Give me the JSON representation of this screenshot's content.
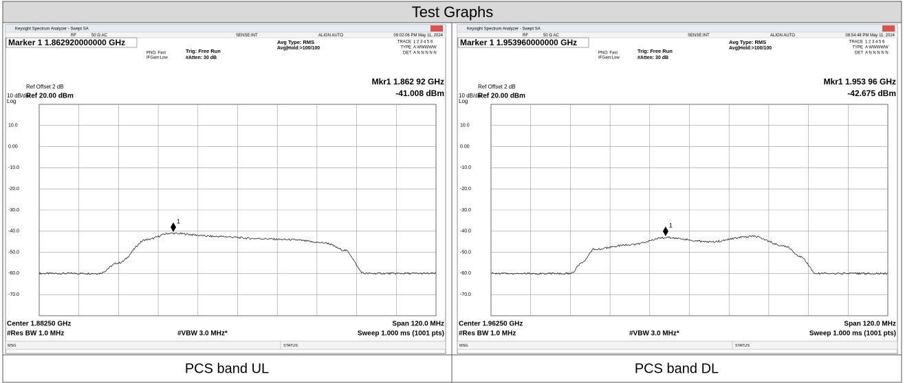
{
  "title": "Test Graphs",
  "panels": [
    {
      "caption": "PCS band UL",
      "window_title": "Keysight Spectrum Analyzer - Swept SA",
      "status_bar": [
        "RF",
        "50 Ω  AC",
        "SENSE:INT",
        "ALIGN AUTO",
        "09:02:06 PM May 11, 2024"
      ],
      "marker": "Marker 1 1.862920000000 GHz",
      "settings": [
        "PNO: Fast",
        "IFGain:Low",
        "Trig: Free Run",
        "#Atten: 30 dB",
        "Avg Type: RMS",
        "Avg|Hold:>100/100"
      ],
      "trace_info": [
        "TRACE",
        "1 2 3 4 5 6",
        "TYPE",
        "A WWWWW",
        "DET",
        "A N N N N N"
      ],
      "ref_offset": "Ref Offset 2 dB",
      "scale": "10 dB/div",
      "ref_level": "Ref 20.00 dBm",
      "scale_type": "Log",
      "marker_freq": "Mkr1 1.862 92 GHz",
      "marker_level": "-41.008 dBm",
      "y_labels": [
        "10.0",
        "0.00",
        "-10.0",
        "-20.0",
        "-30.0",
        "-40.0",
        "-50.0",
        "-60.0",
        "-70.0"
      ],
      "marker_id": "1",
      "center": "Center 1.88250 GHz",
      "res_bw": "#Res BW 1.0 MHz",
      "vbw": "#VBW 3.0 MHz*",
      "span": "Span 120.0 MHz",
      "sweep": "Sweep  1.000 ms (1001 pts)",
      "msg": "MSG",
      "status": "STATUS"
    },
    {
      "caption": "PCS band DL",
      "window_title": "Keysight Spectrum Analyzer - Swept SA",
      "status_bar": [
        "RF",
        "50 Ω  AC",
        "SENSE:INT",
        "ALIGN AUTO",
        "08:54:48 PM May 11, 2024"
      ],
      "marker": "Marker 1 1.953960000000 GHz",
      "settings": [
        "PNO: Fast",
        "IFGain:Low",
        "Trig: Free Run",
        "#Atten: 30 dB",
        "Avg Type: RMS",
        "Avg|Hold:>100/100"
      ],
      "trace_info": [
        "TRACE",
        "1 2 3 4 5 6",
        "TYPE",
        "A WWWWW",
        "DET",
        "A N N N N N"
      ],
      "ref_offset": "Ref Offset 2 dB",
      "scale": "10 dB/div",
      "ref_level": "Ref 20.00 dBm",
      "scale_type": "Log",
      "marker_freq": "Mkr1 1.953 96 GHz",
      "marker_level": "-42.675 dBm",
      "y_labels": [
        "10.0",
        "0.00",
        "-10.0",
        "-20.0",
        "-30.0",
        "-40.0",
        "-50.0",
        "-60.0",
        "-70.0"
      ],
      "marker_id": "1",
      "center": "Center 1.96250 GHz",
      "res_bw": "#Res BW 1.0 MHz",
      "vbw": "#VBW 3.0 MHz*",
      "span": "Span 120.0 MHz",
      "sweep": "Sweep  1.000 ms (1001 pts)",
      "msg": "MSG",
      "status": "STATUS"
    }
  ]
}
